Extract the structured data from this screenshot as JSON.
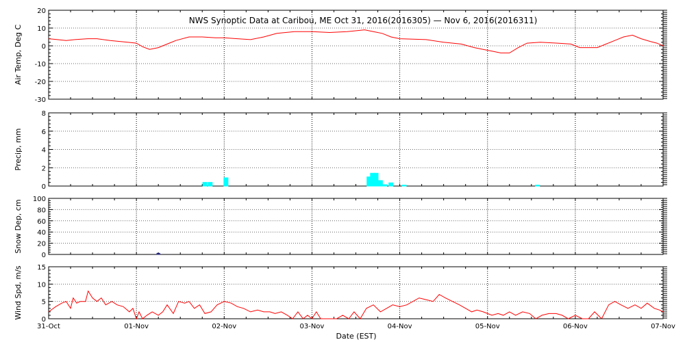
{
  "title": "NWS Synoptic Data at Caribou, ME   Oct 31, 2016(2016305) — Nov  6, 2016(2016311)",
  "x_axis": {
    "label": "Date (EST)",
    "ticks": [
      "31-Oct",
      "01-Nov",
      "02-Nov",
      "03-Nov",
      "04-Nov",
      "05-Nov",
      "06-Nov",
      "07-Nov"
    ]
  },
  "colors": {
    "temperature": "#ff0000",
    "precip": "#00ffff",
    "snow": "#000080",
    "wind": "#ff0000",
    "grid": "#000000"
  },
  "chart_data": [
    {
      "type": "line",
      "panel": "temperature",
      "ylabel": "Air Temp, Deg C",
      "ylim": [
        -30,
        20
      ],
      "yticks": [
        -30,
        -20,
        -10,
        0,
        10,
        20
      ],
      "grid": true,
      "x_units": "days since 31-Oct 00:00",
      "x": [
        0,
        0.1,
        0.2,
        0.3,
        0.45,
        0.55,
        0.7,
        0.8,
        0.9,
        1.0,
        1.07,
        1.15,
        1.25,
        1.35,
        1.45,
        1.6,
        1.75,
        1.9,
        2.0,
        2.15,
        2.3,
        2.45,
        2.6,
        2.8,
        3.0,
        3.2,
        3.4,
        3.6,
        3.7,
        3.8,
        3.9,
        4.0,
        4.3,
        4.5,
        4.7,
        4.85,
        4.95,
        5.05,
        5.15,
        5.25,
        5.35,
        5.45,
        5.6,
        5.8,
        5.95,
        6.05,
        6.15,
        6.25,
        6.35,
        6.45,
        6.55,
        6.65,
        6.75,
        6.85,
        6.93,
        7.0
      ],
      "series": [
        {
          "values": [
            4,
            3.5,
            3,
            3.5,
            4,
            4,
            3,
            2.5,
            2,
            1.5,
            -0.5,
            -2,
            -1,
            1,
            3,
            5,
            5,
            4.5,
            4.5,
            4,
            3.5,
            5,
            7,
            8,
            8,
            7.5,
            8,
            9,
            8,
            7,
            5,
            4,
            3.5,
            2,
            1,
            -1,
            -2,
            -3,
            -4,
            -4,
            -1,
            1.5,
            2,
            1.5,
            1,
            -1,
            -1,
            -1,
            1,
            3,
            5,
            6,
            4,
            2.5,
            1.5,
            0
          ]
        }
      ]
    },
    {
      "type": "bar",
      "panel": "precip",
      "ylabel": "Precip, mm",
      "ylim": [
        0,
        8
      ],
      "yticks": [
        0,
        2,
        4,
        6,
        8
      ],
      "grid": true,
      "x_units": "days since 31-Oct 00:00",
      "x": [
        1.78,
        1.84,
        2.02,
        3.65,
        3.69,
        3.73,
        3.78,
        3.83,
        3.9,
        4.05,
        5.57
      ],
      "values": [
        0.4,
        0.4,
        0.9,
        1.0,
        1.4,
        1.4,
        0.6,
        0.15,
        0.35,
        0.1,
        0.1
      ]
    },
    {
      "type": "bar",
      "panel": "snow",
      "ylabel": "Snow Dep, cm",
      "ylim": [
        0,
        100
      ],
      "yticks": [
        0,
        20,
        40,
        60,
        80,
        100
      ],
      "grid": true,
      "x_units": "days since 31-Oct 00:00",
      "x": [
        1.25
      ],
      "values": [
        2
      ]
    },
    {
      "type": "line",
      "panel": "wind",
      "ylabel": "Wind Spd, m/s",
      "ylim": [
        0,
        15
      ],
      "yticks": [
        0,
        5,
        10,
        15
      ],
      "grid": true,
      "x_units": "days since 31-Oct 00:00",
      "x": [
        0,
        0.08,
        0.15,
        0.2,
        0.25,
        0.28,
        0.32,
        0.36,
        0.42,
        0.45,
        0.5,
        0.55,
        0.6,
        0.65,
        0.72,
        0.78,
        0.85,
        0.92,
        0.96,
        1.0,
        1.03,
        1.07,
        1.12,
        1.18,
        1.25,
        1.3,
        1.35,
        1.42,
        1.48,
        1.55,
        1.6,
        1.66,
        1.72,
        1.78,
        1.85,
        1.92,
        2.0,
        2.08,
        2.15,
        2.22,
        2.3,
        2.38,
        2.45,
        2.52,
        2.58,
        2.65,
        2.72,
        2.78,
        2.84,
        2.9,
        2.95,
        3.0,
        3.05,
        3.1,
        3.15,
        3.2,
        3.28,
        3.35,
        3.42,
        3.48,
        3.55,
        3.62,
        3.7,
        3.78,
        3.85,
        3.92,
        4.0,
        4.08,
        4.15,
        4.22,
        4.3,
        4.38,
        4.45,
        4.52,
        4.6,
        4.68,
        4.75,
        4.82,
        4.88,
        4.95,
        5.0,
        5.05,
        5.12,
        5.18,
        5.25,
        5.32,
        5.4,
        5.48,
        5.55,
        5.62,
        5.7,
        5.78,
        5.85,
        5.92,
        6.0,
        6.08,
        6.15,
        6.22,
        6.3,
        6.38,
        6.45,
        6.52,
        6.6,
        6.68,
        6.75,
        6.82,
        6.9,
        6.96,
        7.0
      ],
      "series": [
        {
          "values": [
            2,
            3.5,
            4.5,
            5,
            3,
            6,
            4.5,
            5,
            5,
            8,
            6,
            5,
            6,
            4,
            5,
            4,
            3.5,
            2,
            3,
            0,
            2,
            0,
            1,
            2,
            1,
            2,
            4,
            1.5,
            5,
            4.5,
            5,
            3,
            4,
            1.5,
            2,
            4,
            5,
            4.5,
            3.5,
            3,
            2,
            2.5,
            2,
            2,
            1.5,
            2,
            1,
            0,
            2,
            0,
            1,
            0,
            2,
            0,
            0,
            0,
            0,
            1,
            0,
            2,
            0,
            3,
            4,
            2,
            3,
            4,
            3.5,
            4,
            5,
            6,
            5.5,
            5,
            7,
            6,
            5,
            4,
            3,
            2,
            2.5,
            2,
            1.5,
            1,
            1.5,
            1,
            2,
            1,
            2,
            1.5,
            0,
            1,
            1.5,
            1.5,
            1,
            0,
            1,
            0,
            0,
            2,
            0,
            4,
            5,
            4,
            3,
            4,
            3,
            4.5,
            3,
            2.5,
            2
          ]
        }
      ]
    }
  ]
}
